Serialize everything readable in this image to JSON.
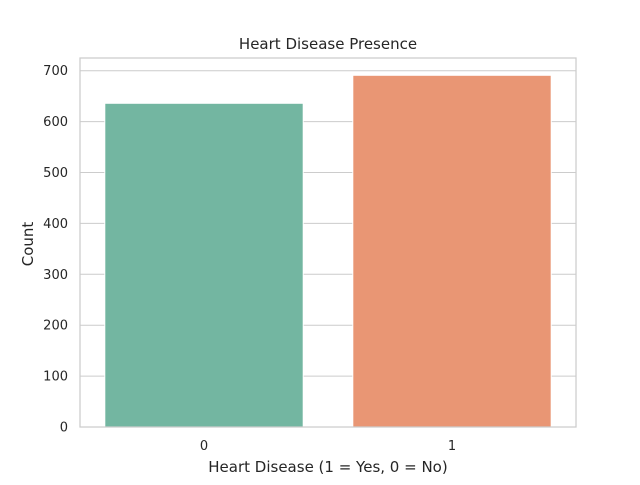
{
  "chart_data": {
    "type": "bar",
    "title": "Heart Disease Presence",
    "xlabel": "Heart Disease (1 = Yes, 0 = No)",
    "ylabel": "Count",
    "categories": [
      "0",
      "1"
    ],
    "values": [
      636,
      691
    ],
    "colors": [
      "#73b6a1",
      "#e99674"
    ],
    "ylim": [
      0,
      725
    ],
    "yticks": [
      0,
      100,
      200,
      300,
      400,
      500,
      600,
      700
    ],
    "grid": true,
    "grid_color": "#cccccc",
    "frame_color": "#cccccc",
    "legend": "none"
  }
}
